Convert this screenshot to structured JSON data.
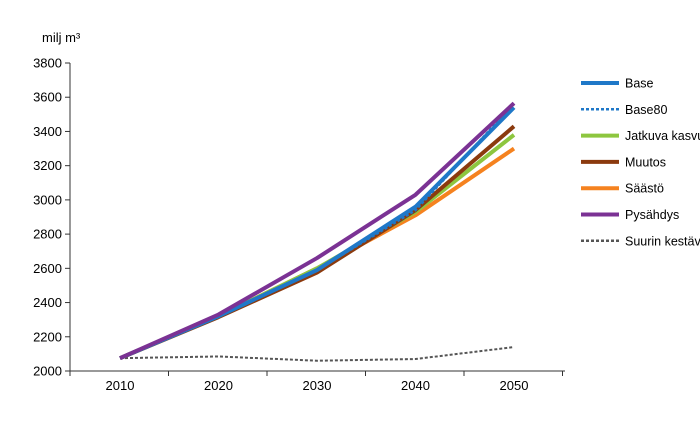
{
  "chart_data": {
    "type": "line",
    "ylabel": "milj m³",
    "x": [
      2010,
      2020,
      2030,
      2040,
      2050
    ],
    "xticks": [
      "2010",
      "2020",
      "2030",
      "2040",
      "2050"
    ],
    "yticks": [
      "2000",
      "2200",
      "2400",
      "2600",
      "2800",
      "3000",
      "3200",
      "3400",
      "3600",
      "3800"
    ],
    "ylim": [
      2000,
      3800
    ],
    "grid": false,
    "legend_position": "right",
    "series": [
      {
        "name": "Base",
        "color": "#1F78C8",
        "style": "solid",
        "values": [
          2075,
          2320,
          2590,
          2960,
          3540
        ]
      },
      {
        "name": "Base80",
        "color": "#1F78C8",
        "style": "dotted",
        "values": [
          2075,
          2320,
          2590,
          2940,
          3560
        ]
      },
      {
        "name": "Jatkuva kasvu",
        "color": "#8DC63F",
        "style": "solid",
        "values": [
          2075,
          2320,
          2600,
          2930,
          3380
        ]
      },
      {
        "name": "Muutos",
        "color": "#8B3A0E",
        "style": "solid",
        "values": [
          2075,
          2315,
          2575,
          2940,
          3430
        ]
      },
      {
        "name": "Säästö",
        "color": "#F5821F",
        "style": "solid",
        "values": [
          2075,
          2320,
          2600,
          2910,
          3300
        ]
      },
      {
        "name": "Pysähdys",
        "color": "#7B3294",
        "style": "solid",
        "values": [
          2075,
          2330,
          2660,
          3030,
          3565
        ]
      },
      {
        "name": "Suurin kestävä hakkuumäärä",
        "color": "#555555",
        "style": "dotted",
        "values": [
          2075,
          2085,
          2060,
          2070,
          2140
        ]
      }
    ]
  }
}
